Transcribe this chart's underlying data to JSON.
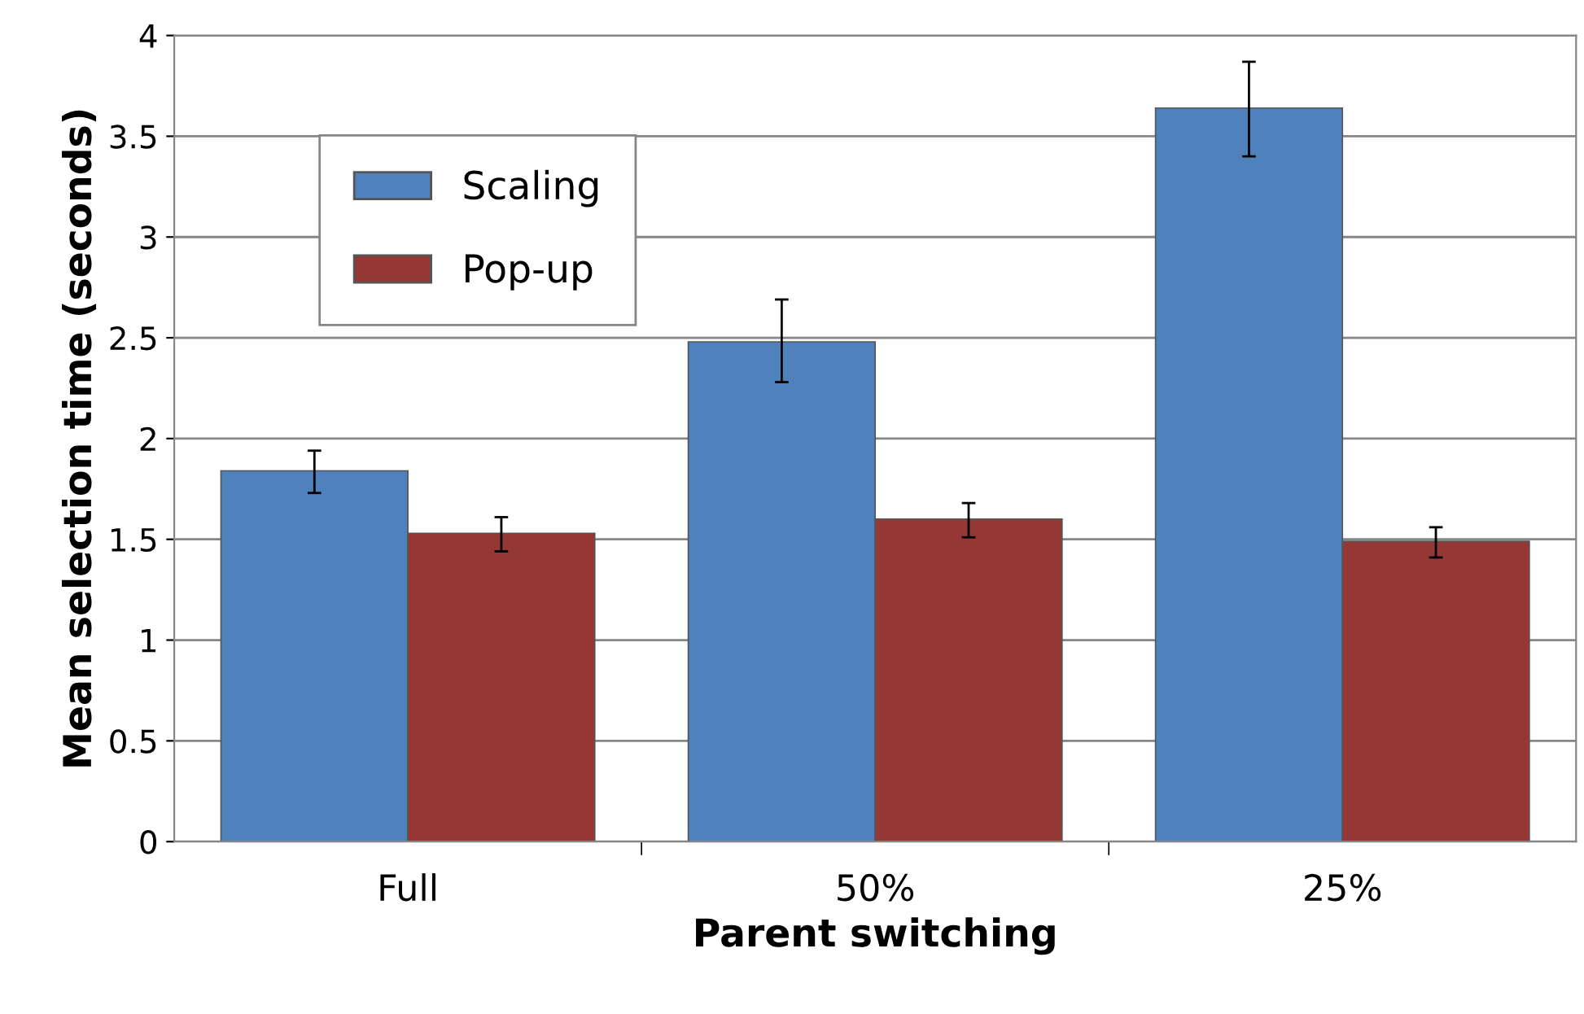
{
  "chart_data": {
    "type": "bar",
    "xlabel": "Parent switching",
    "ylabel": "Mean selection time (seconds)",
    "categories": [
      "Full",
      "50%",
      "25%"
    ],
    "series": [
      {
        "name": "Scaling",
        "color": "#4f81bd",
        "values": [
          1.84,
          2.48,
          3.64
        ],
        "errors": [
          [
            1.73,
            1.94
          ],
          [
            2.28,
            2.69
          ],
          [
            3.4,
            3.87
          ]
        ]
      },
      {
        "name": "Pop-up",
        "color": "#953735",
        "values": [
          1.53,
          1.6,
          1.49
        ],
        "errors": [
          [
            1.44,
            1.61
          ],
          [
            1.51,
            1.68
          ],
          [
            1.41,
            1.56
          ]
        ]
      }
    ],
    "ylim": [
      0,
      4
    ],
    "yticks": [
      0,
      0.5,
      1,
      1.5,
      2,
      2.5,
      3,
      3.5,
      4
    ],
    "grid": "y",
    "legend": "top left"
  }
}
